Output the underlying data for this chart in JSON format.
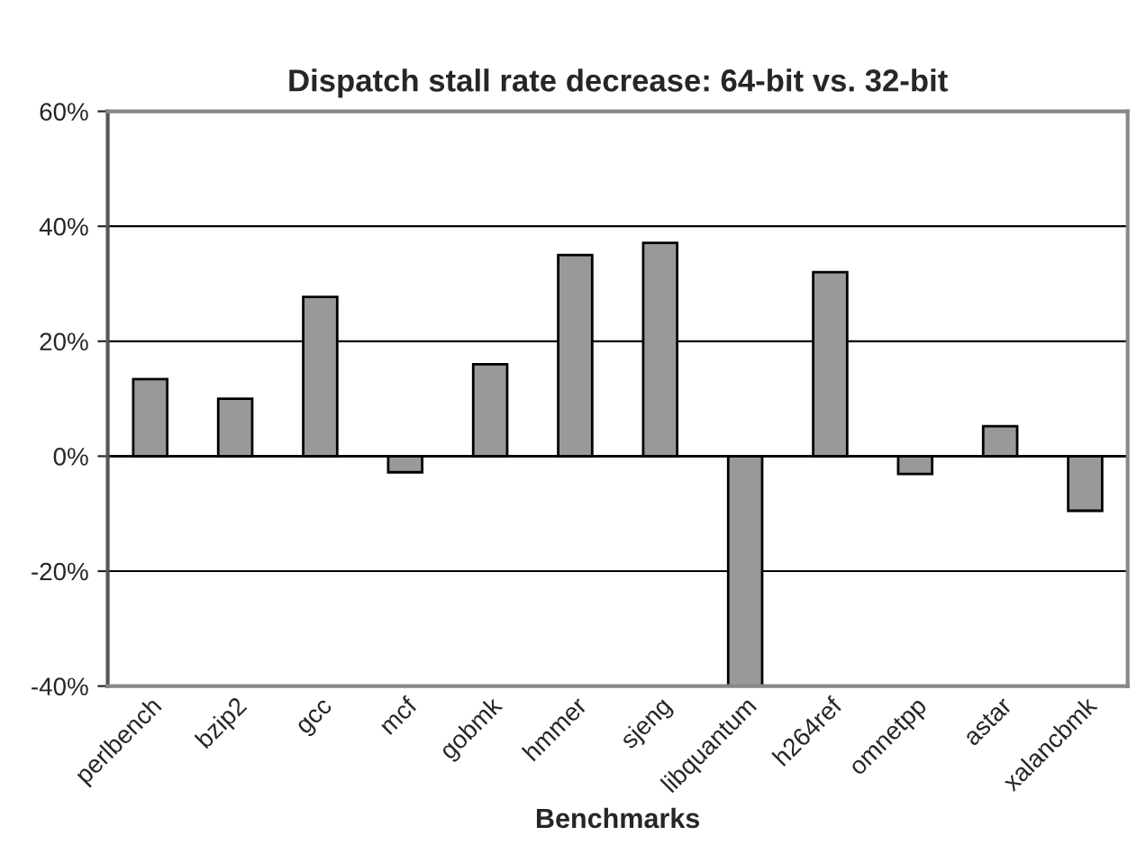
{
  "chart_data": {
    "type": "bar",
    "title": "Dispatch stall rate decrease: 64-bit vs. 32-bit",
    "xlabel": "Benchmarks",
    "categories": [
      "perlbench",
      "bzip2",
      "gcc",
      "mcf",
      "gobmk",
      "hmmer",
      "sjeng",
      "libquantum",
      "h264ref",
      "omnetpp",
      "astar",
      "xalancbmk"
    ],
    "values": [
      13.4,
      10.0,
      27.7,
      -2.8,
      16.0,
      35.0,
      37.1,
      -40,
      32.0,
      -3.1,
      5.2,
      -9.5
    ],
    "color": "#999999",
    "ylim": [
      -40,
      60
    ],
    "yticks": [
      {
        "value": -40,
        "label": "-40%"
      },
      {
        "value": -20,
        "label": "-20%"
      },
      {
        "value": 0,
        "label": "0%"
      },
      {
        "value": 20,
        "label": "20%"
      },
      {
        "value": 40,
        "label": "40%"
      },
      {
        "value": 60,
        "label": "60%"
      }
    ],
    "grid": "y",
    "legend": false
  }
}
